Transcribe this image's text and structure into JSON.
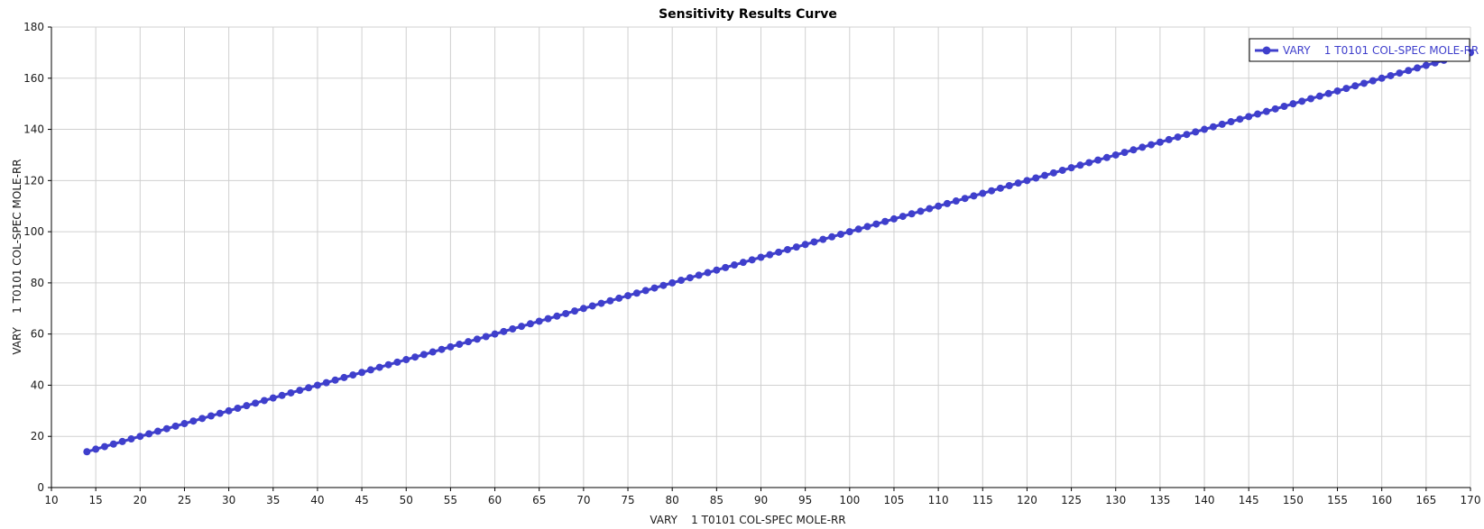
{
  "chart_data": {
    "type": "line",
    "title": "Sensitivity Results Curve",
    "xlabel": "VARY    1 T0101 COL-SPEC MOLE-RR",
    "ylabel": "VARY    1 T0101 COL-SPEC MOLE-RR",
    "xlim": [
      10,
      170
    ],
    "ylim": [
      0,
      180
    ],
    "xticks": [
      10,
      15,
      20,
      25,
      30,
      35,
      40,
      45,
      50,
      55,
      60,
      65,
      70,
      75,
      80,
      85,
      90,
      95,
      100,
      105,
      110,
      115,
      120,
      125,
      130,
      135,
      140,
      145,
      150,
      155,
      160,
      165,
      170
    ],
    "yticks": [
      0,
      20,
      40,
      60,
      80,
      100,
      120,
      140,
      160,
      180
    ],
    "grid": true,
    "legend_position": "top-right",
    "series": [
      {
        "name": "VARY    1 T0101 COL-SPEC MOLE-RR",
        "color": "#3f3fcc",
        "x_start": 14,
        "x_end": 170,
        "x_step": 1,
        "relation": "y = x"
      }
    ]
  }
}
